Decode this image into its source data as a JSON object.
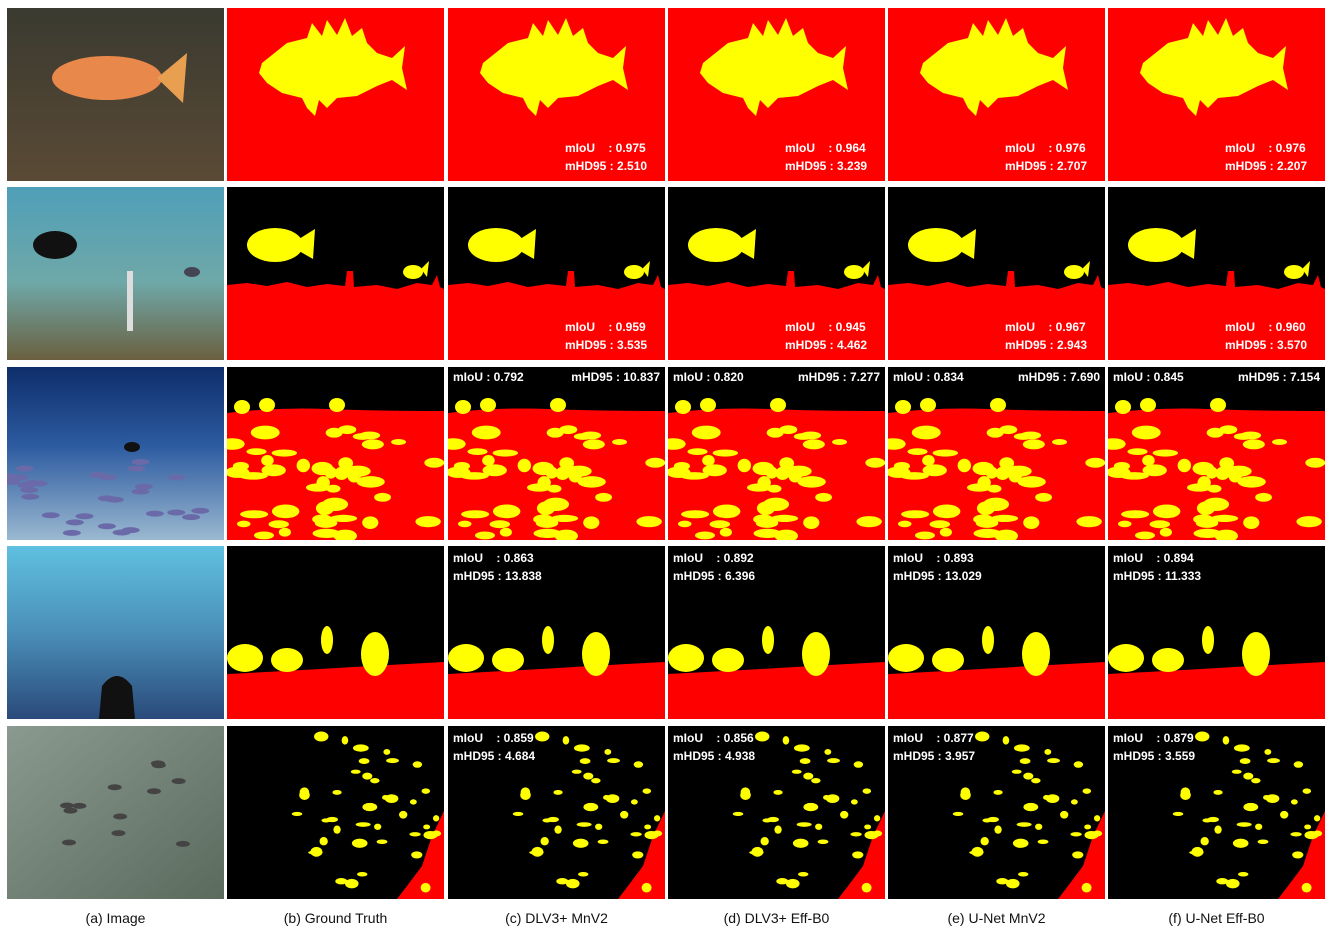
{
  "columns": [
    "(a) Image",
    "(b) Ground Truth",
    "(c) DLV3+ MnV2",
    "(d) DLV3+ Eff-B0",
    "(e) U-Net MnV2",
    "(f) U-Net Eff-B0"
  ],
  "rows": [
    {
      "cells": [
        {
          "miou": "mIoU    : 0.975",
          "mhd95": "mHD95 : 2.510"
        },
        {
          "miou": "mIoU    : 0.964",
          "mhd95": "mHD95 : 3.239"
        },
        {
          "miou": "mIoU    : 0.976",
          "mhd95": "mHD95 : 2.707"
        },
        {
          "miou": "mIoU    : 0.976",
          "mhd95": "mHD95 : 2.207"
        }
      ]
    },
    {
      "cells": [
        {
          "miou": "mIoU    : 0.959",
          "mhd95": "mHD95 : 3.535"
        },
        {
          "miou": "mIoU    : 0.945",
          "mhd95": "mHD95 : 4.462"
        },
        {
          "miou": "mIoU    : 0.967",
          "mhd95": "mHD95 : 2.943"
        },
        {
          "miou": "mIoU    : 0.960",
          "mhd95": "mHD95 : 3.570"
        }
      ]
    },
    {
      "cells": [
        {
          "miou": "mIoU : 0.792",
          "mhd95": "mHD95 : 10.837"
        },
        {
          "miou": "mIoU : 0.820",
          "mhd95": "mHD95 : 7.277"
        },
        {
          "miou": "mIoU : 0.834",
          "mhd95": "mHD95 : 7.690"
        },
        {
          "miou": "mIoU : 0.845",
          "mhd95": "mHD95 : 7.154"
        }
      ]
    },
    {
      "cells": [
        {
          "miou": "mIoU    : 0.863",
          "mhd95": "mHD95 : 13.838"
        },
        {
          "miou": "mIoU    : 0.892",
          "mhd95": "mHD95 : 6.396"
        },
        {
          "miou": "mIoU    : 0.893",
          "mhd95": "mHD95 : 13.029"
        },
        {
          "miou": "mIoU    : 0.894",
          "mhd95": "mHD95 : 11.333"
        }
      ]
    },
    {
      "cells": [
        {
          "miou": "mIoU    : 0.859",
          "mhd95": "mHD95 : 4.684"
        },
        {
          "miou": "mIoU    : 0.856",
          "mhd95": "mHD95 : 4.938"
        },
        {
          "miou": "mIoU    : 0.877",
          "mhd95": "mHD95 : 3.957"
        },
        {
          "miou": "mIoU    : 0.879",
          "mhd95": "mHD95 : 3.559"
        }
      ]
    }
  ]
}
